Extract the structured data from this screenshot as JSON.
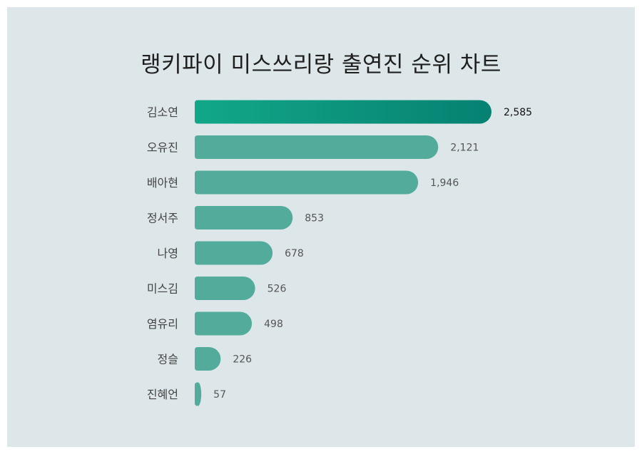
{
  "chart_data": {
    "type": "bar",
    "orientation": "horizontal",
    "title": "랭키파이 미스쓰리랑 출연진 순위 차트",
    "categories": [
      "김소연",
      "오유진",
      "배아현",
      "정서주",
      "나영",
      "미스김",
      "염유리",
      "정슬",
      "진혜언"
    ],
    "values": [
      2585,
      2121,
      1946,
      853,
      678,
      526,
      498,
      226,
      57
    ],
    "value_labels": [
      "2,585",
      "2,121",
      "1,946",
      "853",
      "678",
      "526",
      "498",
      "226",
      "57"
    ],
    "xlim": [
      0,
      2585
    ],
    "grid": false,
    "legend": "none",
    "colors": {
      "bar": "#53ac9b",
      "top_bar_start": "#12a788",
      "top_bar_end": "#068172",
      "background": "#dde7e9",
      "label_text": "#444444",
      "value_text": "#555555"
    }
  }
}
